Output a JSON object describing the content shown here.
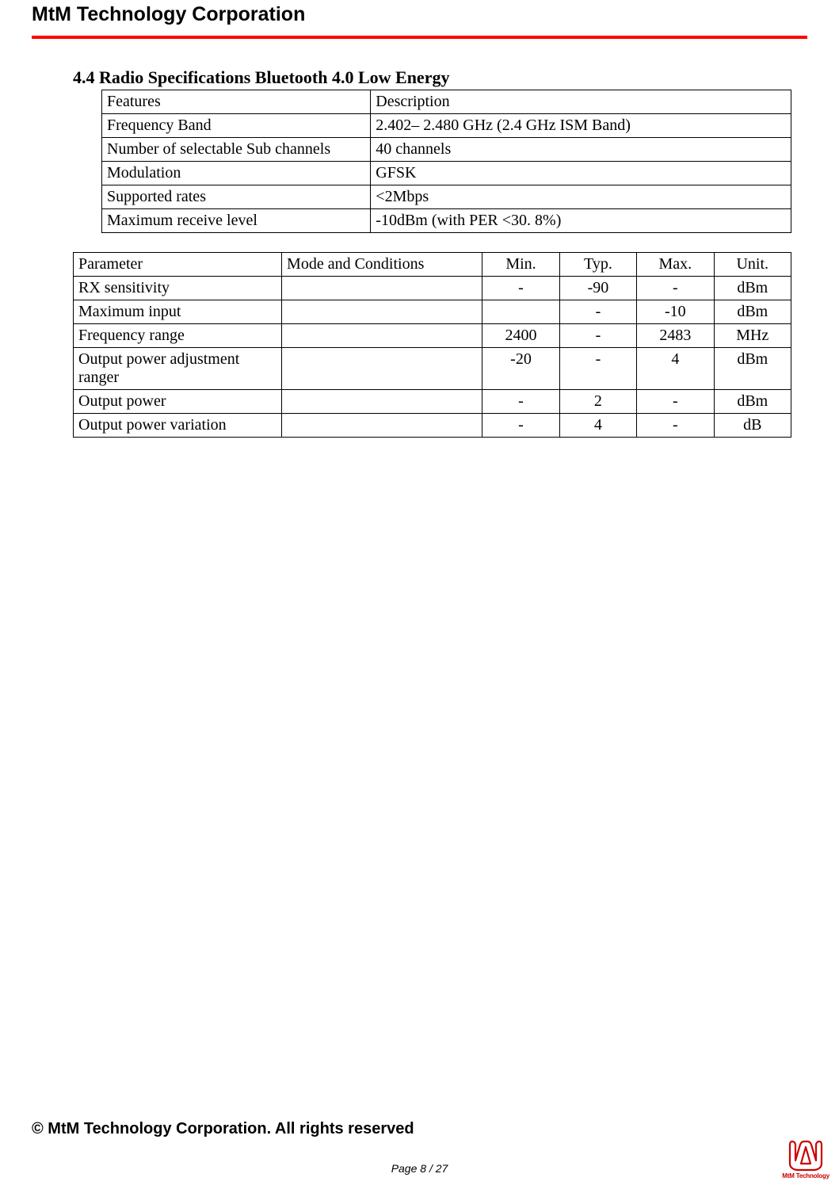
{
  "header": {
    "company_name": "MtM Technology Corporation",
    "divider_color": "#ff0000"
  },
  "section": {
    "title": "4.4 Radio Specifications Bluetooth 4.0 Low Energy"
  },
  "table1": {
    "title_fontsize": 22,
    "cell_fontsize": 20,
    "border_color": "#000000",
    "columns": [
      "Features",
      "Description"
    ],
    "rows": [
      [
        "Frequency Band",
        "2.402– 2.480 GHz (2.4 GHz ISM Band)"
      ],
      [
        "Number of selectable Sub channels",
        "40 channels"
      ],
      [
        "Modulation",
        "GFSK"
      ],
      [
        "Supported rates",
        "<2Mbps"
      ],
      [
        "Maximum receive level",
        "-10dBm (with PER <30. 8%)"
      ]
    ],
    "col_widths": [
      "39%",
      "61%"
    ]
  },
  "table2": {
    "cell_fontsize": 20,
    "border_color": "#000000",
    "columns": [
      "Parameter",
      "Mode and Conditions",
      "Min.",
      "Typ.",
      "Max.",
      "Unit."
    ],
    "rows": [
      [
        "RX sensitivity",
        "",
        "-",
        "-90",
        "-",
        "dBm"
      ],
      [
        "Maximum input",
        "",
        "",
        "-",
        "-10",
        "dBm"
      ],
      [
        "Frequency  range",
        "",
        "2400",
        "-",
        "2483",
        "MHz"
      ],
      [
        "Output power adjustment ranger",
        "",
        "-20",
        "-",
        "4",
        "dBm"
      ],
      [
        "Output power",
        "",
        "-",
        "2",
        "-",
        "dBm"
      ],
      [
        "Output power variation",
        "",
        "-",
        "4",
        "-",
        "dB"
      ]
    ],
    "col_widths": [
      "27%",
      "26%",
      "10%",
      "10%",
      "10%",
      "10%"
    ],
    "center_cols": [
      2,
      3,
      4,
      5
    ],
    "header_center_cols": [
      2,
      3,
      4,
      5
    ]
  },
  "footer": {
    "copyright": "© MtM Technology Corporation. All rights reserved",
    "page_label": "Page 8 / 27"
  },
  "logo": {
    "stroke_color": "#cc0000",
    "text": "MtM Technology"
  }
}
